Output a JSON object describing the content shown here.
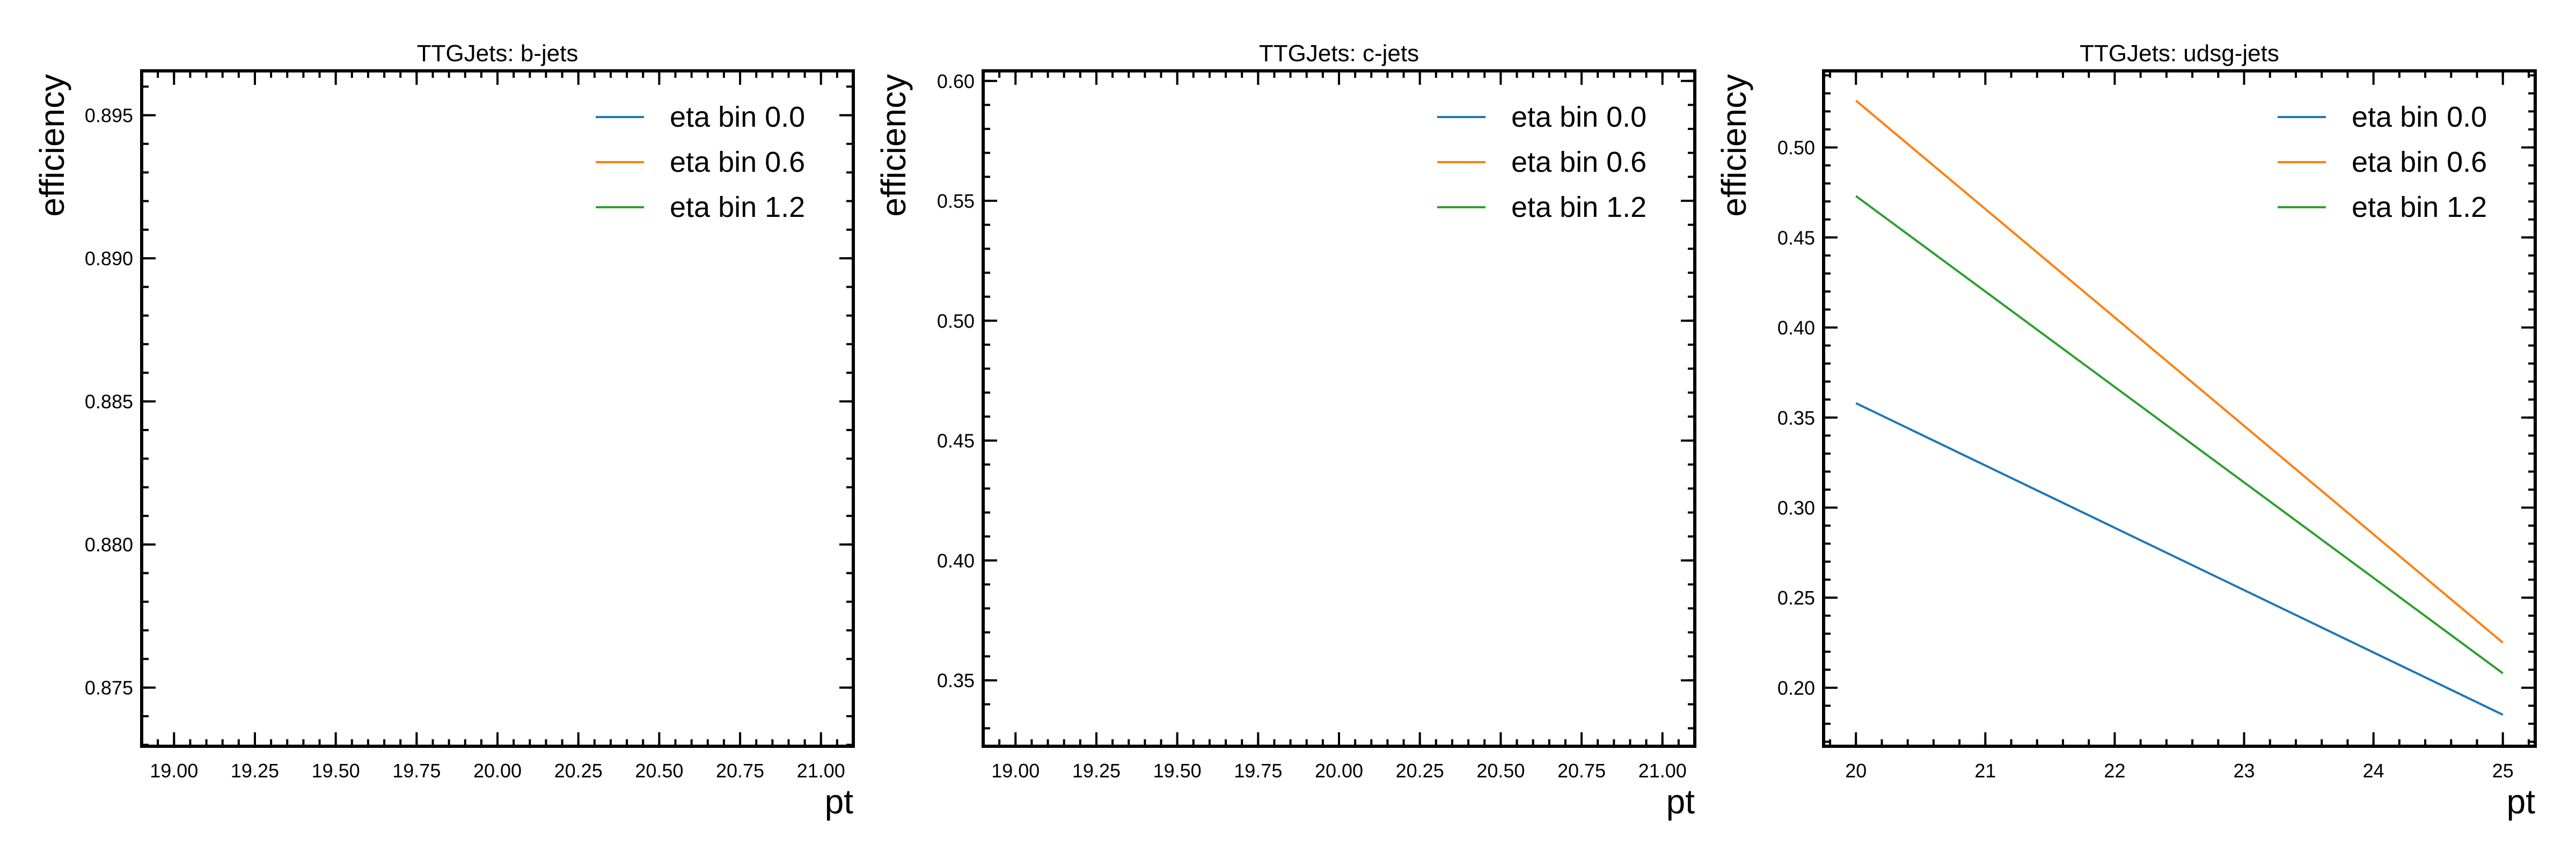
{
  "chart_data": [
    {
      "type": "line",
      "title": "TTGJets: b-jets",
      "xlabel": "pt",
      "ylabel": "efficiency",
      "xlim": [
        18.9,
        21.1
      ],
      "ylim": [
        0.87295,
        0.89655
      ],
      "xticks": [
        19.0,
        19.25,
        19.5,
        19.75,
        20.0,
        20.25,
        20.5,
        20.75,
        21.0
      ],
      "xtick_labels": [
        "19.00",
        "19.25",
        "19.50",
        "19.75",
        "20.00",
        "20.25",
        "20.50",
        "20.75",
        "21.00"
      ],
      "xminor_step": 0.05,
      "yticks": [
        0.875,
        0.88,
        0.885,
        0.89,
        0.895
      ],
      "ytick_labels": [
        "0.875",
        "0.880",
        "0.885",
        "0.890",
        "0.895"
      ],
      "yminor_step": 0.001,
      "legend": "top-right",
      "series": [
        {
          "name": "eta bin 0.0",
          "color": "#1f77b4",
          "x": [],
          "y": []
        },
        {
          "name": "eta bin 0.6",
          "color": "#ff7f0e",
          "x": [],
          "y": []
        },
        {
          "name": "eta bin 1.2",
          "color": "#2ca02c",
          "x": [],
          "y": []
        }
      ]
    },
    {
      "type": "line",
      "title": "TTGJets: c-jets",
      "xlabel": "pt",
      "ylabel": "efficiency",
      "xlim": [
        18.9,
        21.1
      ],
      "ylim": [
        0.3225,
        0.6042
      ],
      "xticks": [
        19.0,
        19.25,
        19.5,
        19.75,
        20.0,
        20.25,
        20.5,
        20.75,
        21.0
      ],
      "xtick_labels": [
        "19.00",
        "19.25",
        "19.50",
        "19.75",
        "20.00",
        "20.25",
        "20.50",
        "20.75",
        "21.00"
      ],
      "xminor_step": 0.05,
      "yticks": [
        0.35,
        0.4,
        0.45,
        0.5,
        0.55,
        0.6
      ],
      "ytick_labels": [
        "0.35",
        "0.40",
        "0.45",
        "0.50",
        "0.55",
        "0.60"
      ],
      "yminor_step": 0.01,
      "legend": "top-right",
      "series": [
        {
          "name": "eta bin 0.0",
          "color": "#1f77b4",
          "x": [],
          "y": []
        },
        {
          "name": "eta bin 0.6",
          "color": "#ff7f0e",
          "x": [],
          "y": []
        },
        {
          "name": "eta bin 1.2",
          "color": "#2ca02c",
          "x": [],
          "y": []
        }
      ]
    },
    {
      "type": "line",
      "title": "TTGJets: udsg-jets",
      "xlabel": "pt",
      "ylabel": "efficiency",
      "xlim": [
        19.75,
        25.25
      ],
      "ylim": [
        0.1675,
        0.5425
      ],
      "xticks": [
        20,
        21,
        22,
        23,
        24,
        25
      ],
      "xtick_labels": [
        "20",
        "21",
        "22",
        "23",
        "24",
        "25"
      ],
      "xminor_step": 0.2,
      "yticks": [
        0.2,
        0.25,
        0.3,
        0.35,
        0.4,
        0.45,
        0.5
      ],
      "ytick_labels": [
        "0.20",
        "0.25",
        "0.30",
        "0.35",
        "0.40",
        "0.45",
        "0.50"
      ],
      "yminor_step": 0.01,
      "legend": "top-right",
      "series": [
        {
          "name": "eta bin 0.0",
          "color": "#1f77b4",
          "x": [
            20,
            25
          ],
          "y": [
            0.358,
            0.185
          ]
        },
        {
          "name": "eta bin 0.6",
          "color": "#ff7f0e",
          "x": [
            20,
            25
          ],
          "y": [
            0.526,
            0.225
          ]
        },
        {
          "name": "eta bin 1.2",
          "color": "#2ca02c",
          "x": [
            20,
            25
          ],
          "y": [
            0.473,
            0.208
          ]
        }
      ]
    }
  ]
}
